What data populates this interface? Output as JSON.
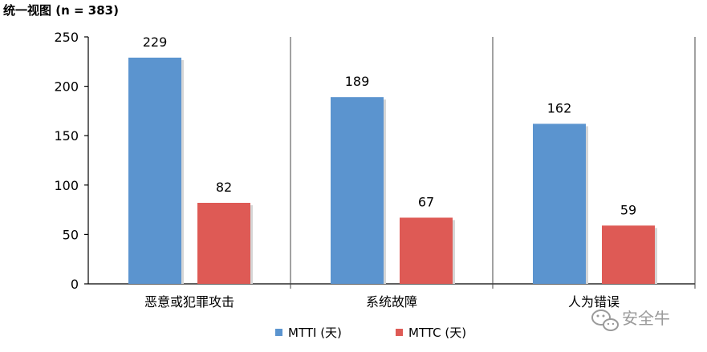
{
  "chart_data": {
    "type": "bar",
    "title": "统一视图 (n = 383)",
    "categories": [
      "恶意或犯罪攻击",
      "系统故障",
      "人为错误"
    ],
    "series": [
      {
        "name": "MTTI (天)",
        "values": [
          229,
          189,
          162
        ],
        "color": "#5b94cf"
      },
      {
        "name": "MTTC (天)",
        "values": [
          82,
          67,
          59
        ],
        "color": "#de5a55"
      }
    ],
    "yticks": [
      0,
      50,
      100,
      150,
      200,
      250
    ],
    "ylim": [
      0,
      250
    ],
    "grid": false,
    "legend_position": "bottom-center"
  },
  "watermark": {
    "text": "安全牛",
    "icon": "wechat-icon"
  }
}
